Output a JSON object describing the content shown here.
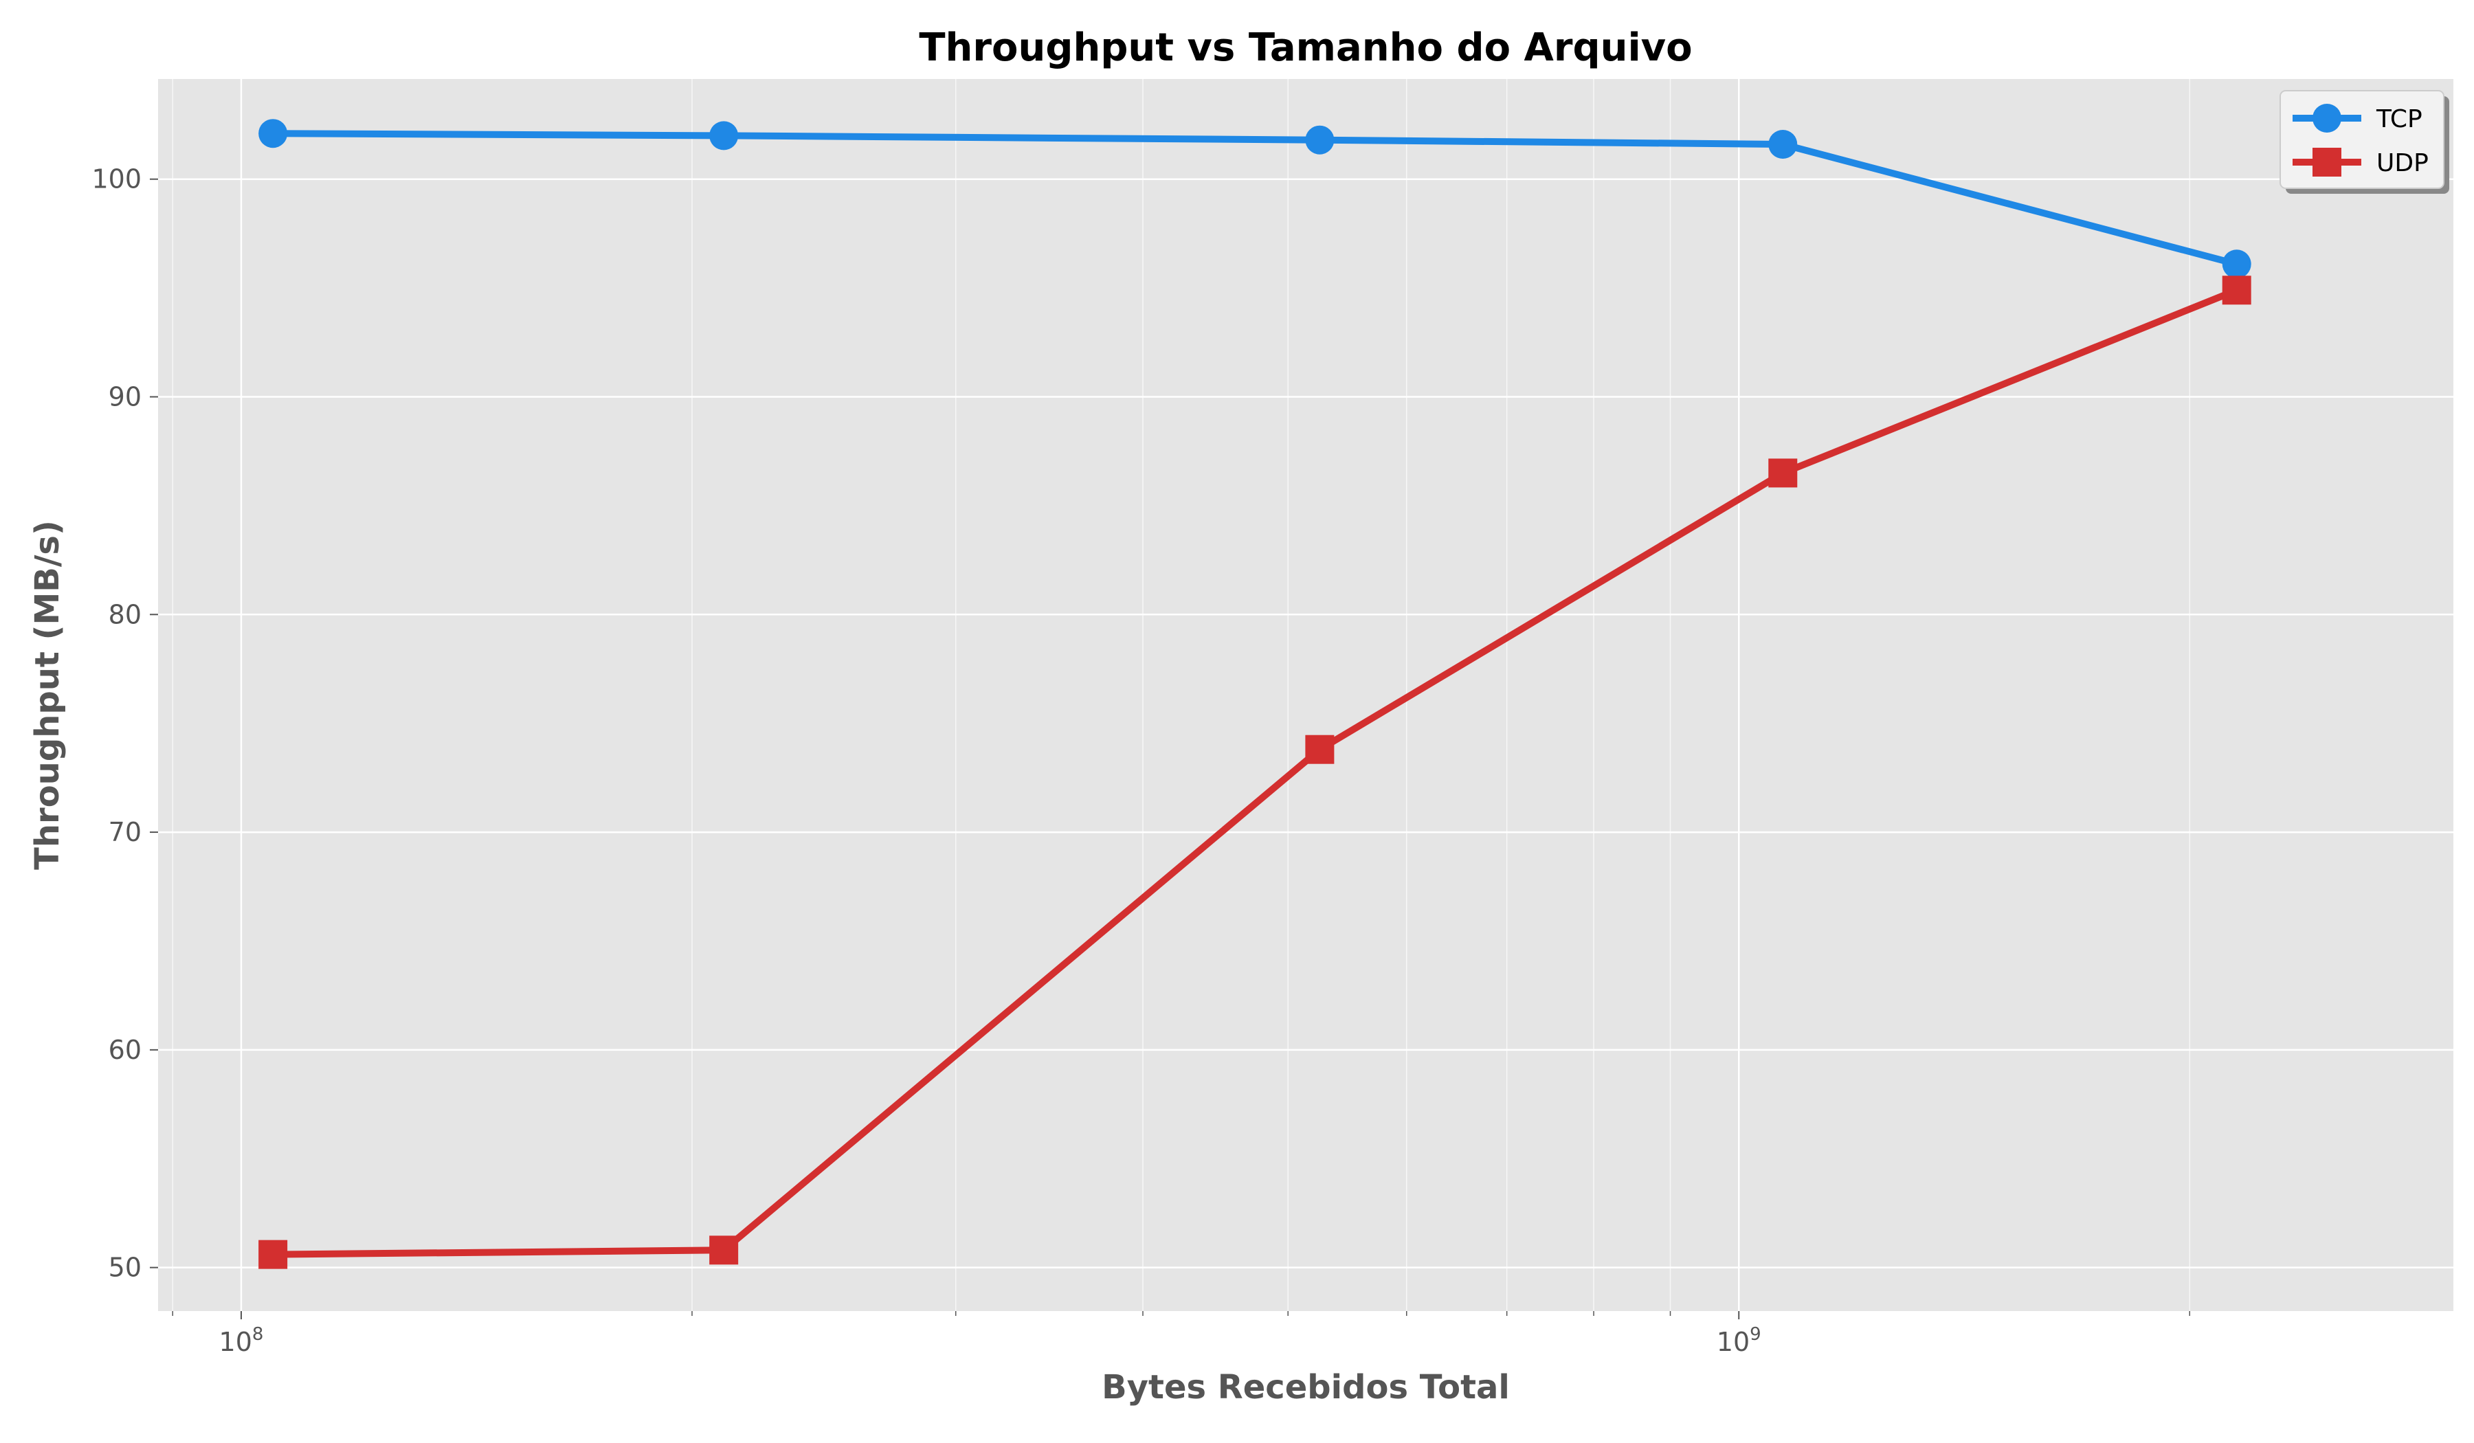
{
  "chart_data": {
    "type": "line",
    "title": "Throughput vs Tamanho do Arquivo",
    "xlabel": "Bytes Recebidos Total",
    "ylabel": "Throughput (MB/s)",
    "x_scale": "log",
    "xlim": [
      88000000.0,
      3000000000.0
    ],
    "ylim": [
      48,
      104.6
    ],
    "x_ticks": [
      {
        "value": 100000000.0,
        "base": "10",
        "exp": "8"
      },
      {
        "value": 1000000000.0,
        "base": "10",
        "exp": "9"
      }
    ],
    "y_ticks": [
      50,
      60,
      70,
      80,
      90,
      100
    ],
    "grid": true,
    "legend": "top-right",
    "series": [
      {
        "name": "TCP",
        "color": "#1f88e5",
        "marker": "circle",
        "x": [
          105000000.0,
          210000000.0,
          525000000.0,
          1070000000.0,
          2150000000.0
        ],
        "y": [
          102.1,
          102.0,
          101.8,
          101.6,
          96.1
        ]
      },
      {
        "name": "UDP",
        "color": "#d32f2f",
        "marker": "square",
        "x": [
          105000000.0,
          210000000.0,
          525000000.0,
          1070000000.0,
          2150000000.0
        ],
        "y": [
          50.6,
          50.8,
          73.8,
          86.5,
          94.9
        ]
      }
    ]
  }
}
